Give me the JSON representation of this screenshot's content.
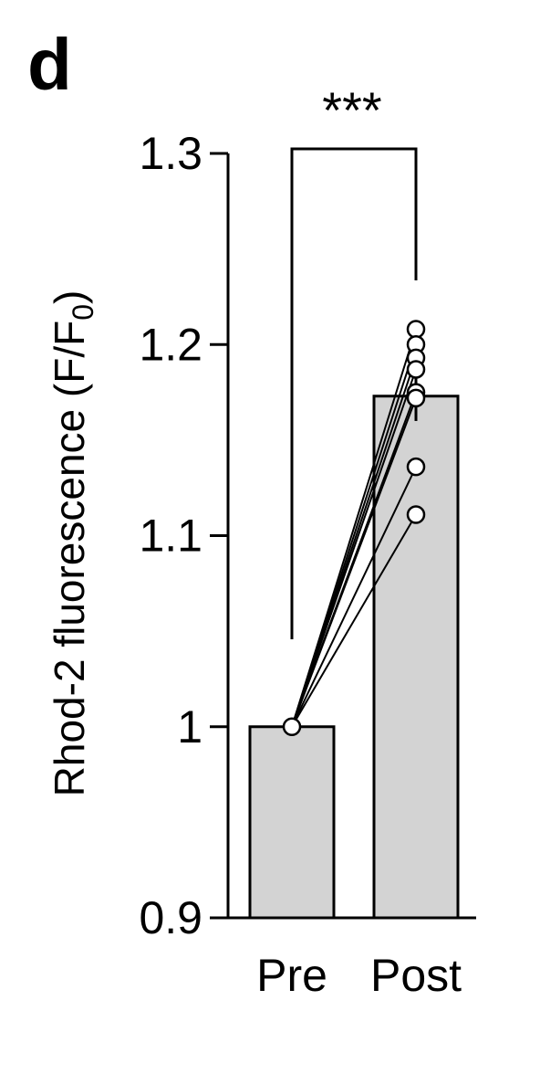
{
  "panel_label": "d",
  "chart_data": {
    "type": "bar",
    "categories": [
      "Pre",
      "Post"
    ],
    "values": [
      1.0,
      1.173
    ],
    "error": [
      0,
      0.013
    ],
    "ylabel_main": "Rhod-2 fluorescence (F/F",
    "ylabel_sub": "0",
    "ylabel_end": ")",
    "ylim": [
      0.9,
      1.3
    ],
    "yticks": [
      0.9,
      1.0,
      1.1,
      1.2,
      1.3
    ],
    "ytick_labels": [
      "0.9",
      "1",
      "1.1",
      "1.2",
      "1.3"
    ],
    "paired_points": {
      "pre": [
        1.0,
        1.0,
        1.0,
        1.0,
        1.0,
        1.0,
        1.0,
        1.0
      ],
      "post": [
        1.208,
        1.2,
        1.193,
        1.187,
        1.175,
        1.172,
        1.136,
        1.111
      ]
    },
    "significance": "***",
    "bar_color": "#d3d3d3"
  }
}
